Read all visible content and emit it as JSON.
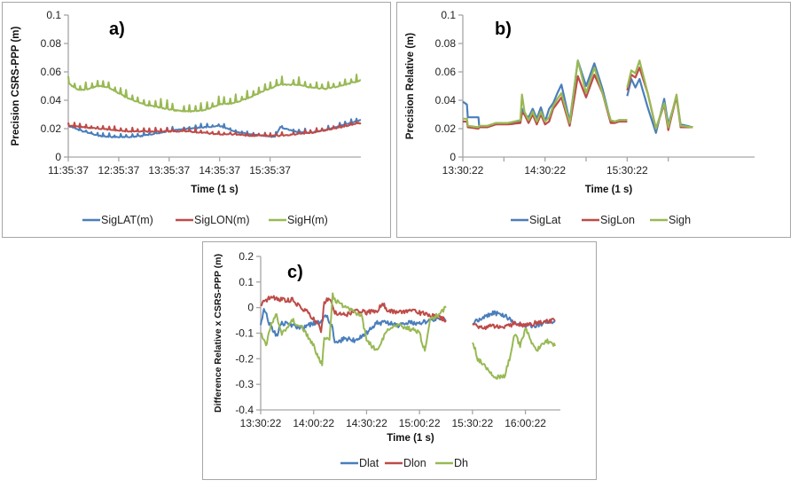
{
  "chart_data": [
    {
      "id": "a",
      "type": "line",
      "panel_label": "a)",
      "title": "",
      "xlabel": "Time (1 s)",
      "ylabel": "Precision CSRS-PPP (m)",
      "ylim": [
        0,
        0.1
      ],
      "yticks": [
        0,
        0.02,
        0.04,
        0.06,
        0.08,
        0.1
      ],
      "ytick_labels": [
        "0",
        "0.02",
        "0.04",
        "0.06",
        "0.08",
        "0.1"
      ],
      "xlim": [
        0,
        5.8
      ],
      "xticks": [
        0,
        1,
        2,
        3,
        4
      ],
      "xtick_labels": [
        "11:35:37",
        "12:35:37",
        "13:35:37",
        "14:35:37",
        "15:35:37"
      ],
      "xunit": "hours since 11:35:37",
      "grid": false,
      "legend_position": "bottom",
      "series": [
        {
          "name": "SigLAT(m)",
          "color": "#4a7ebb",
          "x": [
            0,
            0.3,
            0.6,
            0.9,
            1.2,
            1.5,
            1.8,
            2.1,
            2.4,
            2.7,
            3.0,
            3.3,
            3.6,
            3.9,
            4.1,
            4.2,
            4.5,
            4.8,
            5.1,
            5.4,
            5.8
          ],
          "values": [
            0.022,
            0.018,
            0.015,
            0.014,
            0.014,
            0.015,
            0.017,
            0.019,
            0.02,
            0.021,
            0.022,
            0.018,
            0.016,
            0.015,
            0.014,
            0.021,
            0.018,
            0.017,
            0.019,
            0.022,
            0.026
          ]
        },
        {
          "name": "SigLON(m)",
          "color": "#be4b48",
          "x": [
            0,
            0.3,
            0.6,
            0.9,
            1.2,
            1.5,
            1.8,
            2.1,
            2.4,
            2.7,
            3.0,
            3.3,
            3.6,
            3.9,
            4.2,
            4.5,
            4.8,
            5.1,
            5.4,
            5.8
          ],
          "values": [
            0.022,
            0.021,
            0.02,
            0.019,
            0.018,
            0.018,
            0.018,
            0.018,
            0.018,
            0.017,
            0.016,
            0.016,
            0.015,
            0.015,
            0.015,
            0.016,
            0.017,
            0.019,
            0.021,
            0.024
          ]
        },
        {
          "name": "SigH(m)",
          "color": "#98b954",
          "x": [
            0,
            0.2,
            0.4,
            0.6,
            0.8,
            1.0,
            1.2,
            1.5,
            1.8,
            2.1,
            2.4,
            2.7,
            3.0,
            3.3,
            3.6,
            3.9,
            4.2,
            4.5,
            4.8,
            5.1,
            5.4,
            5.8
          ],
          "values": [
            0.052,
            0.047,
            0.048,
            0.05,
            0.049,
            0.045,
            0.041,
            0.037,
            0.035,
            0.033,
            0.032,
            0.033,
            0.037,
            0.038,
            0.042,
            0.047,
            0.051,
            0.051,
            0.049,
            0.048,
            0.05,
            0.054
          ]
        }
      ]
    },
    {
      "id": "b",
      "type": "line",
      "panel_label": "b)",
      "title": "",
      "xlabel": "Time (1 s)",
      "ylabel": "Precision Relative (m)",
      "ylim": [
        0,
        0.1
      ],
      "yticks": [
        0,
        0.02,
        0.04,
        0.06,
        0.08,
        0.1
      ],
      "ytick_labels": [
        "0",
        "0.02",
        "0.04",
        "0.06",
        "0.08",
        "0.1"
      ],
      "xlim": [
        0,
        3.55
      ],
      "xticks": [
        0,
        0.5,
        1,
        1.5,
        2,
        2.5
      ],
      "xtick_labels": [
        "13:30:22",
        "",
        "14:30:22",
        "",
        "15:30:22",
        ""
      ],
      "xunit": "hours since 13:30:22",
      "grid": false,
      "legend_position": "bottom",
      "series": [
        {
          "name": "SigLat",
          "color": "#4a7ebb",
          "x": [
            0,
            0.05,
            0.06,
            0.19,
            0.2,
            0.3,
            0.4,
            0.55,
            0.7,
            0.72,
            0.75,
            0.8,
            0.85,
            0.9,
            0.95,
            1.0,
            1.05,
            1.1,
            1.15,
            1.2,
            1.3,
            1.4,
            1.5,
            1.6,
            1.7,
            1.8,
            1.85,
            1.9,
            2.0,
            null,
            2.0,
            2.05,
            2.1,
            2.15,
            2.25,
            2.35,
            2.45,
            2.5,
            2.6,
            2.65,
            2.8
          ],
          "values": [
            0.039,
            0.037,
            0.028,
            0.028,
            0.021,
            0.022,
            0.023,
            0.024,
            0.025,
            0.034,
            0.03,
            0.028,
            0.034,
            0.027,
            0.035,
            0.025,
            0.034,
            0.038,
            0.045,
            0.051,
            0.025,
            0.068,
            0.05,
            0.066,
            0.048,
            0.025,
            0.025,
            0.026,
            0.026,
            null,
            0.043,
            0.055,
            0.049,
            0.055,
            0.035,
            0.017,
            0.041,
            0.023,
            0.042,
            0.023,
            0.021
          ]
        },
        {
          "name": "SigLon",
          "color": "#be4b48",
          "x": [
            0,
            0.05,
            0.06,
            0.19,
            0.2,
            0.3,
            0.4,
            0.55,
            0.7,
            0.72,
            0.75,
            0.8,
            0.85,
            0.9,
            0.95,
            1.0,
            1.05,
            1.1,
            1.15,
            1.2,
            1.3,
            1.4,
            1.5,
            1.6,
            1.7,
            1.8,
            1.85,
            1.9,
            2.0,
            null,
            2.0,
            2.05,
            2.1,
            2.15,
            2.25,
            2.35,
            2.45,
            2.5,
            2.6,
            2.65,
            2.8
          ],
          "values": [
            0.025,
            0.025,
            0.021,
            0.02,
            0.021,
            0.021,
            0.023,
            0.023,
            0.024,
            0.031,
            0.03,
            0.024,
            0.03,
            0.023,
            0.03,
            0.023,
            0.025,
            0.034,
            0.038,
            0.042,
            0.022,
            0.057,
            0.042,
            0.058,
            0.045,
            0.024,
            0.024,
            0.025,
            0.025,
            null,
            0.047,
            0.058,
            0.056,
            0.063,
            0.045,
            0.02,
            0.037,
            0.019,
            0.043,
            0.021,
            0.021
          ]
        },
        {
          "name": "Sigh",
          "color": "#98b954",
          "x": [
            0,
            0.05,
            0.06,
            0.19,
            0.2,
            0.3,
            0.4,
            0.55,
            0.7,
            0.72,
            0.75,
            0.8,
            0.85,
            0.9,
            0.95,
            1.0,
            1.05,
            1.1,
            1.15,
            1.2,
            1.3,
            1.4,
            1.5,
            1.6,
            1.7,
            1.8,
            1.85,
            1.9,
            2.0,
            null,
            2.0,
            2.05,
            2.1,
            2.15,
            2.25,
            2.35,
            2.45,
            2.5,
            2.6,
            2.65,
            2.8
          ],
          "values": [
            0.027,
            0.027,
            0.022,
            0.021,
            0.022,
            0.022,
            0.024,
            0.024,
            0.026,
            0.044,
            0.032,
            0.026,
            0.032,
            0.025,
            0.032,
            0.025,
            0.028,
            0.036,
            0.041,
            0.045,
            0.024,
            0.068,
            0.045,
            0.063,
            0.045,
            0.026,
            0.025,
            0.026,
            0.026,
            null,
            0.049,
            0.061,
            0.059,
            0.068,
            0.045,
            0.02,
            0.038,
            0.021,
            0.044,
            0.022,
            0.021
          ]
        }
      ]
    },
    {
      "id": "c",
      "type": "line",
      "panel_label": "c)",
      "title": "",
      "xlabel": "Time (1 s)",
      "ylabel": "Difference Relative x CSRS-PPP (m)",
      "ylim": [
        -0.4,
        0.2
      ],
      "yticks": [
        -0.4,
        -0.3,
        -0.2,
        -0.1,
        0,
        0.1,
        0.2
      ],
      "ytick_labels": [
        "-0.4",
        "-0.3",
        "-0.2",
        "-0.1",
        "0",
        "0.1",
        "0.2"
      ],
      "xlim": [
        0,
        2.83
      ],
      "xticks": [
        0,
        0.5,
        1,
        1.5,
        2,
        2.5
      ],
      "xtick_labels": [
        "13:30:22",
        "14:00:22",
        "14:30:22",
        "15:00:22",
        "15:30:22",
        "16:00:22"
      ],
      "xunit": "hours since 13:30:22",
      "grid": false,
      "legend_position": "bottom",
      "series": [
        {
          "name": "Dlat",
          "color": "#4a7ebb",
          "x": [
            0,
            0.03,
            0.08,
            0.15,
            0.2,
            0.3,
            0.4,
            0.5,
            0.55,
            0.62,
            0.68,
            0.7,
            0.8,
            0.9,
            1.0,
            1.1,
            1.2,
            1.3,
            1.4,
            1.5,
            1.6,
            1.7,
            1.75,
            null,
            2.0,
            2.1,
            2.2,
            2.3,
            2.4,
            2.5,
            2.6,
            2.78
          ],
          "values": [
            -0.07,
            0.0,
            -0.06,
            -0.11,
            -0.06,
            -0.07,
            -0.08,
            -0.06,
            -0.06,
            -0.03,
            -0.08,
            -0.14,
            -0.12,
            -0.13,
            -0.1,
            -0.06,
            -0.06,
            -0.07,
            -0.06,
            -0.06,
            -0.05,
            -0.04,
            -0.05,
            null,
            -0.06,
            -0.04,
            -0.02,
            -0.03,
            -0.06,
            -0.07,
            -0.07,
            -0.05
          ]
        },
        {
          "name": "Dlon",
          "color": "#be4b48",
          "x": [
            0,
            0.05,
            0.1,
            0.2,
            0.3,
            0.35,
            0.45,
            0.55,
            0.57,
            0.6,
            0.65,
            0.7,
            0.8,
            0.9,
            1.0,
            1.1,
            1.15,
            1.2,
            1.3,
            1.4,
            1.5,
            1.6,
            1.7,
            1.75,
            null,
            2.0,
            2.1,
            2.2,
            2.3,
            2.4,
            2.5,
            2.6,
            2.78
          ],
          "values": [
            0.01,
            0.03,
            0.04,
            0.03,
            0.03,
            0.01,
            -0.02,
            -0.07,
            -0.1,
            0.02,
            0.04,
            -0.02,
            -0.03,
            -0.01,
            -0.02,
            -0.01,
            0.02,
            -0.01,
            -0.02,
            -0.01,
            -0.02,
            -0.03,
            -0.04,
            -0.05,
            null,
            -0.07,
            -0.08,
            -0.07,
            -0.08,
            -0.06,
            -0.07,
            -0.06,
            -0.05
          ]
        },
        {
          "name": "Dh",
          "color": "#98b954",
          "x": [
            0,
            0.05,
            0.1,
            0.15,
            0.2,
            0.3,
            0.4,
            0.5,
            0.55,
            0.58,
            0.6,
            0.65,
            0.68,
            0.7,
            0.8,
            0.95,
            1.0,
            1.05,
            1.1,
            1.2,
            1.3,
            1.4,
            1.5,
            1.55,
            1.6,
            1.7,
            1.75,
            null,
            2.0,
            2.05,
            2.1,
            2.2,
            2.3,
            2.35,
            2.4,
            2.45,
            2.5,
            2.6,
            2.7,
            2.78
          ],
          "values": [
            -0.1,
            -0.15,
            -0.06,
            -0.03,
            -0.1,
            -0.05,
            -0.08,
            -0.15,
            -0.2,
            -0.22,
            -0.12,
            -0.13,
            0.05,
            0.03,
            0.0,
            -0.03,
            -0.12,
            -0.15,
            -0.17,
            -0.08,
            -0.07,
            -0.08,
            -0.1,
            -0.17,
            -0.05,
            -0.02,
            0.0,
            null,
            -0.13,
            -0.2,
            -0.22,
            -0.27,
            -0.27,
            -0.2,
            -0.1,
            -0.15,
            -0.08,
            -0.17,
            -0.13,
            -0.15
          ]
        }
      ]
    }
  ]
}
